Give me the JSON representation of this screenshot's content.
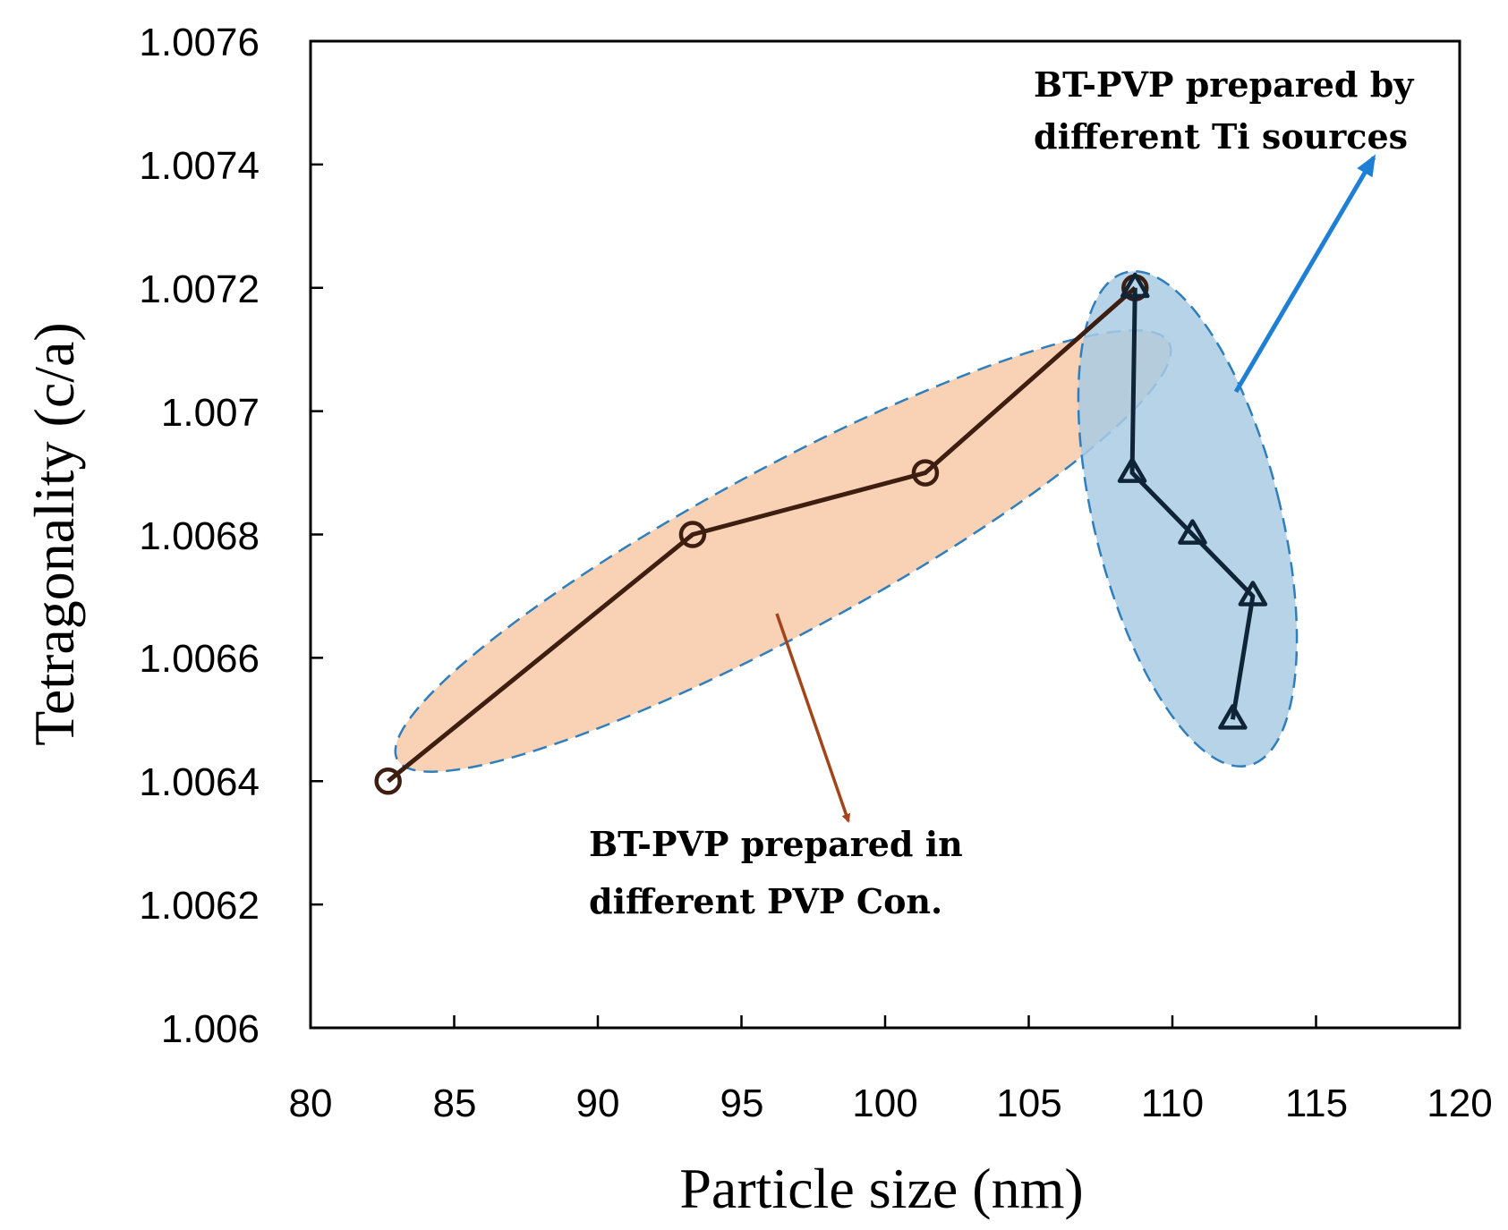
{
  "chart_data": {
    "type": "line",
    "title": "",
    "xlabel": "Particle size (nm)",
    "ylabel": "Tetragonality (c/a)",
    "xlim": [
      80,
      120
    ],
    "ylim": [
      1.006,
      1.0076
    ],
    "xticks": [
      "80",
      "85",
      "90",
      "95",
      "100",
      "105",
      "110",
      "115",
      "120"
    ],
    "yticks": [
      "1.006",
      "1.0062",
      "1.0064",
      "1.0066",
      "1.0068",
      "1.007",
      "1.0072",
      "1.0074",
      "1.0076"
    ],
    "grid": false,
    "series": [
      {
        "name": "BT-PVP prepared in different PVP Con.",
        "marker": "circle",
        "color": "#3d1e10",
        "x": [
          82.7,
          93.3,
          101.4,
          108.7
        ],
        "y": [
          1.0064,
          1.0068,
          1.0069,
          1.0072
        ]
      },
      {
        "name": "BT-PVP prepared by different Ti sources",
        "marker": "triangle",
        "color": "#0f2436",
        "x": [
          108.7,
          108.6,
          110.7,
          112.8,
          112.1
        ],
        "y": [
          1.0072,
          1.0069,
          1.0068,
          1.0067,
          1.0065
        ]
      }
    ],
    "annotations": [
      {
        "name": "pvp-concentration-group",
        "lines": [
          "BT-PVP prepared in",
          "different PVP Con."
        ],
        "fill": "#f9cfb1",
        "arrow_color": "#a0461a"
      },
      {
        "name": "ti-source-group",
        "lines": [
          "BT-PVP prepared by",
          "different Ti sources"
        ],
        "fill": "#a9cbe4",
        "arrow_color": "#1f7fd4"
      }
    ]
  }
}
